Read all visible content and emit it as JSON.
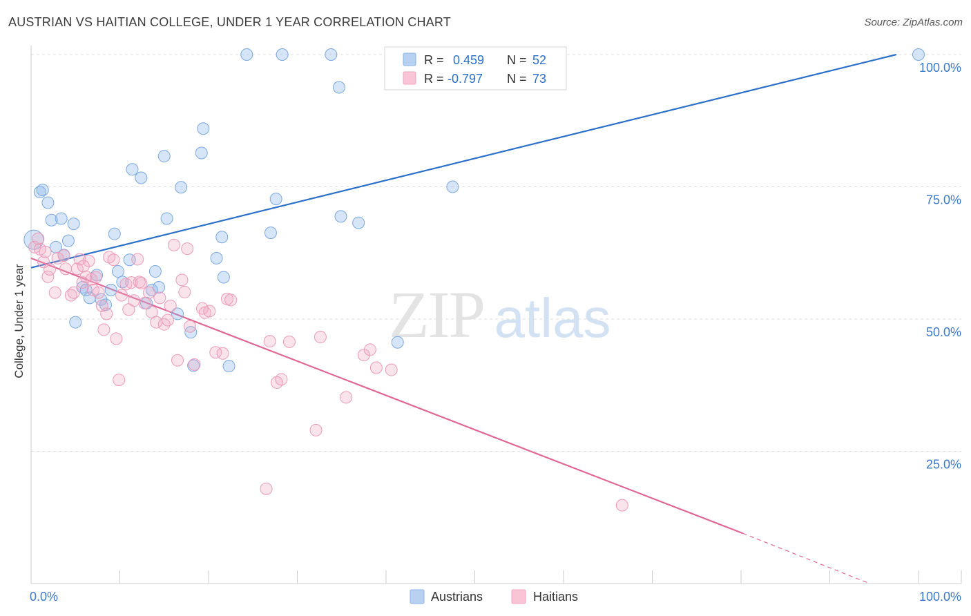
{
  "title": "AUSTRIAN VS HAITIAN COLLEGE, UNDER 1 YEAR CORRELATION CHART",
  "source": "Source: ZipAtlas.com",
  "watermark": {
    "zip": "ZIP",
    "atlas": "atlas"
  },
  "colors": {
    "blue": "#8ab4e8",
    "blue_line": "#2a6fca",
    "pink": "#f0a5bf",
    "pink_line": "#e06696",
    "tick_text": "#3a78c9",
    "grid": "#dddddd"
  },
  "legend": {
    "rows": [
      {
        "r_label": "R =",
        "r_value": "0.459",
        "n_label": "N =",
        "n_value": "52"
      },
      {
        "r_label": "R =",
        "r_value": "-0.797",
        "n_label": "N =",
        "n_value": "73"
      }
    ]
  },
  "bottom_legend": [
    "Austrians",
    "Haitians"
  ],
  "chart_data": {
    "type": "scatter",
    "title": "AUSTRIAN VS HAITIAN COLLEGE, UNDER 1 YEAR CORRELATION CHART",
    "xlabel": "",
    "ylabel": "College, Under 1 year",
    "xlim": [
      0,
      100
    ],
    "ylim": [
      0,
      100
    ],
    "x_tick_labels": [
      "0.0%",
      "100.0%"
    ],
    "y_tick_labels": [
      "25.0%",
      "50.0%",
      "75.0%",
      "100.0%"
    ],
    "y_ticks": [
      25,
      50,
      75,
      100
    ],
    "grid": true,
    "legend_position": "top-center",
    "series": [
      {
        "name": "Austrians",
        "color": "#8ab4e8",
        "r": 0.459,
        "n": 52,
        "trend": {
          "x": [
            0,
            97.5
          ],
          "y": [
            59.7,
            100
          ],
          "dashed_to": null
        },
        "points": [
          [
            0.3,
            65.0
          ],
          [
            1.0,
            74.0
          ],
          [
            1.3,
            74.4
          ],
          [
            1.9,
            72.0
          ],
          [
            2.3,
            68.7
          ],
          [
            3.4,
            69.0
          ],
          [
            4.8,
            68.0
          ],
          [
            2.8,
            63.6
          ],
          [
            3.7,
            62.1
          ],
          [
            4.2,
            64.8
          ],
          [
            5.8,
            56.0
          ],
          [
            6.2,
            55.5
          ],
          [
            6.6,
            54.0
          ],
          [
            7.4,
            58.3
          ],
          [
            7.9,
            53.7
          ],
          [
            8.4,
            52.7
          ],
          [
            9.0,
            55.5
          ],
          [
            9.4,
            66.1
          ],
          [
            9.8,
            59.0
          ],
          [
            10.3,
            57.0
          ],
          [
            11.1,
            61.2
          ],
          [
            11.4,
            78.3
          ],
          [
            12.4,
            76.7
          ],
          [
            13.0,
            53.0
          ],
          [
            13.6,
            55.5
          ],
          [
            14.0,
            59.0
          ],
          [
            14.4,
            56.0
          ],
          [
            15.0,
            80.8
          ],
          [
            15.3,
            69.0
          ],
          [
            16.5,
            51.0
          ],
          [
            16.9,
            74.9
          ],
          [
            18.0,
            47.5
          ],
          [
            18.3,
            41.2
          ],
          [
            19.2,
            81.4
          ],
          [
            19.4,
            86.0
          ],
          [
            20.9,
            61.5
          ],
          [
            21.5,
            65.5
          ],
          [
            21.7,
            57.9
          ],
          [
            22.3,
            41.1
          ],
          [
            24.3,
            100
          ],
          [
            27.0,
            66.3
          ],
          [
            27.6,
            72.7
          ],
          [
            28.3,
            100
          ],
          [
            33.8,
            100
          ],
          [
            34.7,
            93.8
          ],
          [
            34.9,
            69.4
          ],
          [
            36.9,
            68.2
          ],
          [
            41.3,
            45.6
          ],
          [
            47.5,
            75.0
          ],
          [
            52.8,
            96.7
          ],
          [
            100,
            100
          ],
          [
            5.0,
            49.4
          ]
        ]
      },
      {
        "name": "Haitians",
        "color": "#f0a5bf",
        "r": -0.797,
        "n": 73,
        "trend": {
          "x": [
            0,
            80.2
          ],
          "y": [
            61.5,
            9.5
          ],
          "dashed_to": [
            94.5,
            0
          ]
        },
        "points": [
          [
            0.4,
            63.6
          ],
          [
            1.0,
            63.2
          ],
          [
            1.4,
            60.8
          ],
          [
            1.9,
            58.0
          ],
          [
            2.1,
            59.4
          ],
          [
            2.7,
            55.0
          ],
          [
            3.0,
            61.5
          ],
          [
            3.7,
            62.0
          ],
          [
            3.9,
            59.5
          ],
          [
            4.5,
            54.5
          ],
          [
            4.8,
            55.0
          ],
          [
            5.2,
            59.5
          ],
          [
            5.5,
            61.3
          ],
          [
            5.8,
            56.9
          ],
          [
            6.2,
            58.0
          ],
          [
            6.5,
            61.0
          ],
          [
            6.8,
            57.5
          ],
          [
            7.0,
            55.5
          ],
          [
            7.3,
            57.9
          ],
          [
            7.6,
            55.0
          ],
          [
            8.0,
            52.5
          ],
          [
            8.2,
            48.0
          ],
          [
            8.5,
            51.0
          ],
          [
            8.8,
            61.7
          ],
          [
            9.3,
            61.2
          ],
          [
            9.6,
            46.3
          ],
          [
            9.9,
            38.5
          ],
          [
            10.2,
            54.5
          ],
          [
            10.7,
            56.6
          ],
          [
            11.0,
            51.8
          ],
          [
            11.3,
            56.9
          ],
          [
            11.6,
            53.5
          ],
          [
            12.0,
            61.3
          ],
          [
            12.4,
            56.8
          ],
          [
            12.8,
            53.0
          ],
          [
            13.3,
            55.0
          ],
          [
            13.6,
            51.3
          ],
          [
            14.1,
            49.4
          ],
          [
            14.5,
            54.0
          ],
          [
            15.0,
            49.0
          ],
          [
            15.4,
            49.8
          ],
          [
            15.7,
            52.5
          ],
          [
            16.1,
            64.0
          ],
          [
            16.5,
            42.2
          ],
          [
            17.0,
            57.4
          ],
          [
            17.3,
            55.1
          ],
          [
            17.6,
            63.3
          ],
          [
            17.9,
            48.6
          ],
          [
            18.4,
            41.4
          ],
          [
            19.3,
            52.0
          ],
          [
            19.6,
            51.2
          ],
          [
            20.1,
            51.5
          ],
          [
            20.8,
            43.7
          ],
          [
            21.6,
            43.5
          ],
          [
            22.1,
            53.8
          ],
          [
            22.5,
            53.6
          ],
          [
            26.9,
            45.8
          ],
          [
            27.7,
            38.0
          ],
          [
            28.2,
            38.6
          ],
          [
            29.1,
            45.7
          ],
          [
            26.5,
            17.9
          ],
          [
            32.1,
            29.0
          ],
          [
            32.6,
            46.6
          ],
          [
            35.5,
            35.2
          ],
          [
            37.5,
            43.2
          ],
          [
            38.2,
            44.2
          ],
          [
            38.9,
            40.8
          ],
          [
            40.6,
            40.4
          ],
          [
            66.6,
            14.8
          ],
          [
            0.8,
            65.2
          ],
          [
            1.6,
            62.7
          ],
          [
            5.9,
            60.0
          ],
          [
            12.2,
            57.0
          ]
        ]
      }
    ]
  }
}
